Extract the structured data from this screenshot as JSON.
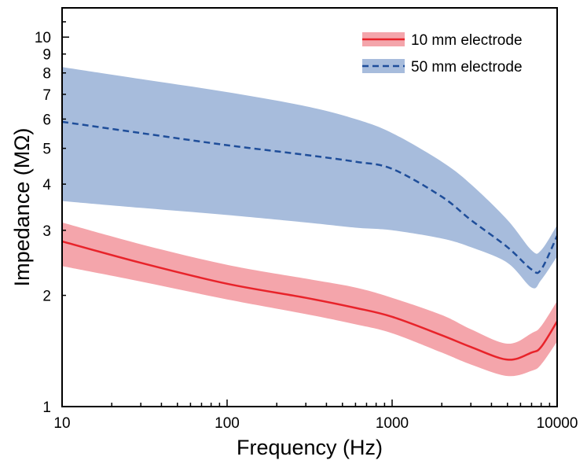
{
  "chart_data": {
    "type": "line",
    "title": "",
    "xlabel": "Frequency (Hz)",
    "ylabel": "Impedance (MΩ)",
    "x_scale": "log",
    "y_scale": "log",
    "xlim": [
      10,
      10000
    ],
    "ylim": [
      1,
      12
    ],
    "x_ticks": [
      10,
      100,
      1000,
      10000
    ],
    "x_tick_labels": [
      "10",
      "100",
      "1000",
      "10000"
    ],
    "y_ticks": [
      1,
      2,
      3,
      4,
      5,
      6,
      7,
      8,
      9,
      10
    ],
    "y_tick_labels": [
      "1",
      "2",
      "3",
      "4",
      "5",
      "6",
      "7",
      "8",
      "9",
      "10"
    ],
    "grid": false,
    "legend_position": "top-right",
    "series": [
      {
        "name": "50 mm electrode",
        "color": "#1f4e9a",
        "band_color": "#a7bcdc",
        "line_style": "dashed",
        "x": [
          10,
          30,
          100,
          300,
          600,
          1000,
          2000,
          3000,
          5000,
          7000,
          8000,
          10000
        ],
        "mean": [
          5.9,
          5.5,
          5.1,
          4.8,
          4.6,
          4.4,
          3.7,
          3.2,
          2.7,
          2.35,
          2.35,
          2.9
        ],
        "upper": [
          8.3,
          7.7,
          7.1,
          6.5,
          6.0,
          5.5,
          4.6,
          4.0,
          3.2,
          2.65,
          2.65,
          3.1
        ],
        "lower": [
          3.6,
          3.45,
          3.3,
          3.15,
          3.05,
          3.0,
          2.85,
          2.7,
          2.45,
          2.1,
          2.2,
          2.55
        ]
      },
      {
        "name": "10 mm electrode",
        "color": "#e8232a",
        "band_color": "#f4a5ab",
        "line_style": "solid",
        "x": [
          10,
          30,
          100,
          300,
          600,
          1000,
          2000,
          3000,
          5000,
          7000,
          8000,
          10000
        ],
        "mean": [
          2.8,
          2.45,
          2.15,
          1.97,
          1.85,
          1.75,
          1.56,
          1.45,
          1.34,
          1.4,
          1.45,
          1.7
        ],
        "upper": [
          3.15,
          2.75,
          2.42,
          2.22,
          2.1,
          1.97,
          1.77,
          1.62,
          1.48,
          1.58,
          1.65,
          1.93
        ],
        "lower": [
          2.4,
          2.18,
          1.95,
          1.78,
          1.67,
          1.58,
          1.4,
          1.3,
          1.21,
          1.25,
          1.3,
          1.5
        ]
      }
    ]
  }
}
